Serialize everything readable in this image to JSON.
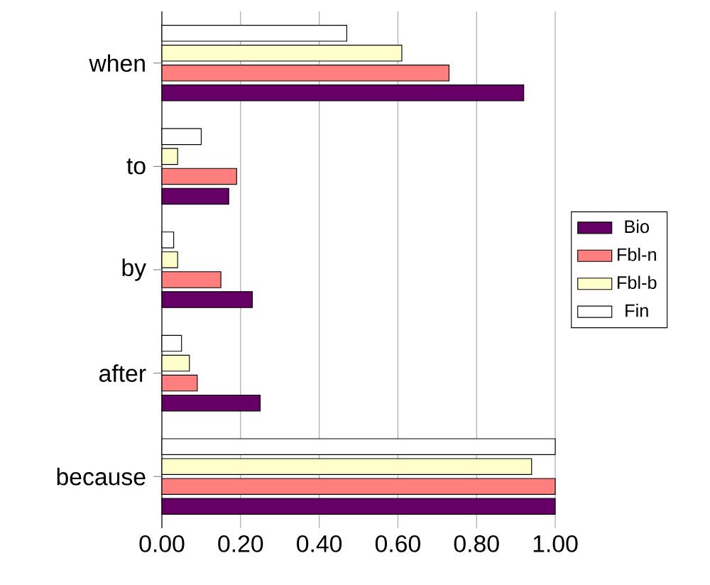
{
  "chart_data": {
    "type": "bar",
    "orientation": "horizontal",
    "categories": [
      "when",
      "to",
      "by",
      "after",
      "because"
    ],
    "series": [
      {
        "name": "Bio",
        "color": "#660066",
        "values": [
          0.92,
          0.17,
          0.23,
          0.25,
          1.0
        ]
      },
      {
        "name": "Fbl-n",
        "color": "#ff7f7f",
        "values": [
          0.73,
          0.19,
          0.15,
          0.09,
          1.0
        ]
      },
      {
        "name": "Fbl-b",
        "color": "#ffffcc",
        "values": [
          0.61,
          0.04,
          0.04,
          0.07,
          0.94
        ]
      },
      {
        "name": "Fin",
        "color": "#ffffff",
        "values": [
          0.47,
          0.1,
          0.03,
          0.05,
          1.0
        ]
      }
    ],
    "xlim": [
      0,
      1
    ],
    "xticks": [
      {
        "value": 0,
        "label": "0.00"
      },
      {
        "value": 0.2,
        "label": "0.20"
      },
      {
        "value": 0.4,
        "label": "0.40"
      },
      {
        "value": 0.6,
        "label": "0.60"
      },
      {
        "value": 0.8,
        "label": "0.80"
      },
      {
        "value": 1,
        "label": "1.00"
      }
    ],
    "grid": "x",
    "legend": "right"
  }
}
